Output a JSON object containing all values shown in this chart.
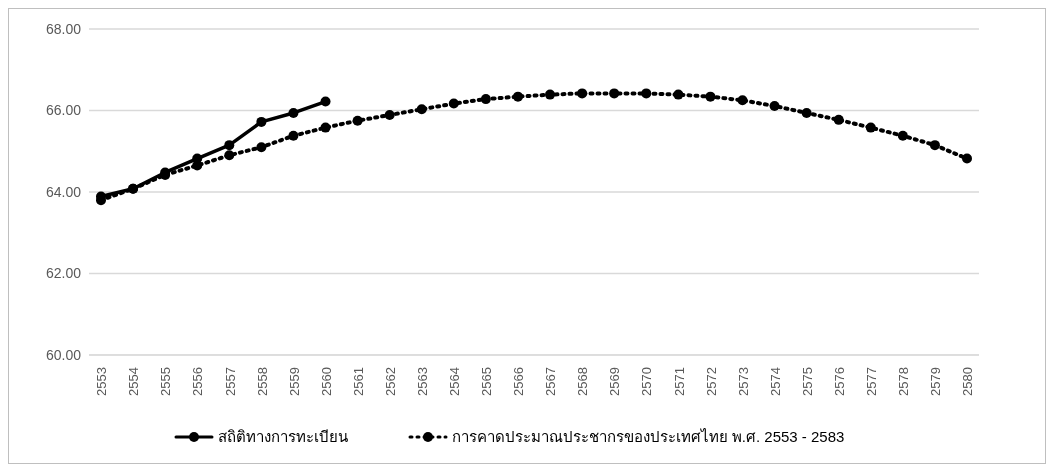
{
  "chart_data": {
    "type": "line",
    "categories": [
      "2553",
      "2554",
      "2555",
      "2556",
      "2557",
      "2558",
      "2559",
      "2560",
      "2561",
      "2562",
      "2563",
      "2564",
      "2565",
      "2566",
      "2567",
      "2568",
      "2569",
      "2570",
      "2571",
      "2572",
      "2573",
      "2574",
      "2575",
      "2576",
      "2577",
      "2578",
      "2579",
      "2580"
    ],
    "series": [
      {
        "name": "สถิติทางการทะเบียน",
        "color": "#000000",
        "line_style": "solid",
        "values": [
          63.89,
          64.08,
          64.48,
          64.82,
          65.15,
          65.72,
          65.94,
          66.22,
          null,
          null,
          null,
          null,
          null,
          null,
          null,
          null,
          null,
          null,
          null,
          null,
          null,
          null,
          null,
          null,
          null,
          null,
          null,
          null
        ]
      },
      {
        "name": "การคาดประมาณประชากรของประเทศไทย พ.ศ. 2553 - 2583",
        "color": "#000000",
        "line_style": "dotted",
        "values": [
          63.8,
          64.08,
          64.42,
          64.65,
          64.9,
          65.1,
          65.38,
          65.58,
          65.75,
          65.89,
          66.03,
          66.17,
          66.28,
          66.34,
          66.39,
          66.42,
          66.42,
          66.42,
          66.39,
          66.34,
          66.25,
          66.11,
          65.94,
          65.77,
          65.58,
          65.38,
          65.15,
          64.82
        ]
      }
    ],
    "ylim": [
      60,
      68
    ],
    "yticks": [
      {
        "value": 60,
        "label": "60.00"
      },
      {
        "value": 62,
        "label": "62.00"
      },
      {
        "value": 64,
        "label": "64.00"
      },
      {
        "value": 66,
        "label": "66.00"
      },
      {
        "value": 68,
        "label": "68.00"
      }
    ],
    "grid": "y",
    "legend": "bottom",
    "marker": "circle"
  }
}
